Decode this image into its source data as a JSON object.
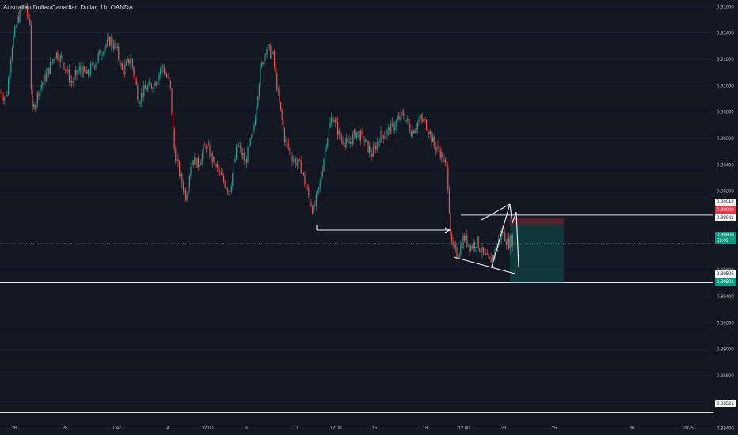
{
  "header": {
    "title": "Australian Dollar/Canadian Dollar, 1h, OANDA"
  },
  "price_axis": {
    "ticks": [
      "0.91600",
      "0.91400",
      "0.91200",
      "0.91000",
      "0.90800",
      "0.90600",
      "0.90400",
      "0.90200",
      "0.89600",
      "0.89400",
      "0.89200",
      "0.89000",
      "0.88800",
      "0.88600",
      "0.88400"
    ],
    "tick_values": [
      0.916,
      0.914,
      0.912,
      0.91,
      0.908,
      0.906,
      0.904,
      0.902,
      0.896,
      0.894,
      0.892,
      0.89,
      0.888,
      0.886,
      0.884
    ]
  },
  "time_axis": {
    "ticks": [
      "26",
      "28",
      "Dec",
      "4",
      "12:00",
      "9",
      "11",
      "12:00",
      "16",
      "18",
      "12:00",
      "23",
      "25",
      "30",
      "2025"
    ]
  },
  "price_tags": {
    "top": {
      "value": "0.90019",
      "color": "#ffffff",
      "text_color": "#131722"
    },
    "stop": {
      "value": "0.90000",
      "color": "#f23645",
      "text_color": "#ffffff"
    },
    "entry": {
      "value": "0.89941",
      "color": "#ffffff",
      "text_color": "#131722"
    },
    "last": {
      "value": "0.89806",
      "countdown": "59:02",
      "color": "#089981",
      "text_color": "#ffffff"
    },
    "support": {
      "value": "0.89505",
      "color": "#ffffff",
      "text_color": "#131722"
    },
    "target": {
      "value": "0.89501",
      "color": "#089981",
      "text_color": "#ffffff"
    },
    "low": {
      "value": "0.88521",
      "color": "#ffffff",
      "text_color": "#131722"
    }
  },
  "colors": {
    "up": "#26a69a",
    "down": "#ef5350",
    "background": "#131722",
    "text": "#b2b5be"
  },
  "chart_data": {
    "type": "candlestick",
    "title": "Australian Dollar/Canadian Dollar, 1h, OANDA",
    "ylim": [
      0.8835,
      0.9165
    ],
    "close_path": [
      [
        0,
        0.9095
      ],
      [
        8,
        0.909
      ],
      [
        15,
        0.913
      ],
      [
        22,
        0.915
      ],
      [
        30,
        0.9162
      ],
      [
        38,
        0.9148
      ],
      [
        40,
        0.9078
      ],
      [
        50,
        0.9098
      ],
      [
        60,
        0.911
      ],
      [
        70,
        0.9125
      ],
      [
        80,
        0.9118
      ],
      [
        90,
        0.9102
      ],
      [
        100,
        0.9112
      ],
      [
        110,
        0.9108
      ],
      [
        120,
        0.9118
      ],
      [
        130,
        0.9128
      ],
      [
        140,
        0.9135
      ],
      [
        148,
        0.9126
      ],
      [
        155,
        0.911
      ],
      [
        165,
        0.9122
      ],
      [
        175,
        0.909
      ],
      [
        185,
        0.9098
      ],
      [
        195,
        0.9102
      ],
      [
        205,
        0.9115
      ],
      [
        215,
        0.91
      ],
      [
        220,
        0.9052
      ],
      [
        228,
        0.903
      ],
      [
        235,
        0.9016
      ],
      [
        242,
        0.9045
      ],
      [
        250,
        0.904
      ],
      [
        260,
        0.9055
      ],
      [
        270,
        0.9042
      ],
      [
        280,
        0.903
      ],
      [
        290,
        0.902
      ],
      [
        300,
        0.9055
      ],
      [
        310,
        0.9042
      ],
      [
        320,
        0.9065
      ],
      [
        328,
        0.9108
      ],
      [
        336,
        0.913
      ],
      [
        345,
        0.9122
      ],
      [
        352,
        0.909
      ],
      [
        360,
        0.9058
      ],
      [
        370,
        0.9045
      ],
      [
        380,
        0.9038
      ],
      [
        388,
        0.902
      ],
      [
        396,
        0.9005
      ],
      [
        404,
        0.9025
      ],
      [
        412,
        0.9058
      ],
      [
        420,
        0.9078
      ],
      [
        430,
        0.906
      ],
      [
        440,
        0.9055
      ],
      [
        450,
        0.9065
      ],
      [
        460,
        0.9058
      ],
      [
        470,
        0.9048
      ],
      [
        480,
        0.9062
      ],
      [
        490,
        0.9065
      ],
      [
        500,
        0.9072
      ],
      [
        510,
        0.9078
      ],
      [
        520,
        0.9065
      ],
      [
        530,
        0.9075
      ],
      [
        540,
        0.907
      ],
      [
        548,
        0.9055
      ],
      [
        556,
        0.905
      ],
      [
        565,
        0.9035
      ],
      [
        570,
        0.8978
      ],
      [
        578,
        0.8972
      ],
      [
        586,
        0.8985
      ],
      [
        594,
        0.8978
      ],
      [
        602,
        0.8982
      ],
      [
        610,
        0.8972
      ],
      [
        618,
        0.8966
      ],
      [
        626,
        0.8975
      ],
      [
        634,
        0.899
      ],
      [
        642,
        0.898
      ],
      [
        648,
        0.8985
      ]
    ],
    "lines": [
      {
        "name": "support",
        "value": 0.89505
      },
      {
        "name": "low",
        "value": 0.88521
      },
      {
        "name": "top",
        "value": 0.90019
      }
    ],
    "position": {
      "type": "short",
      "entry": 0.89941,
      "stop": 0.9,
      "target": 0.89501
    }
  }
}
